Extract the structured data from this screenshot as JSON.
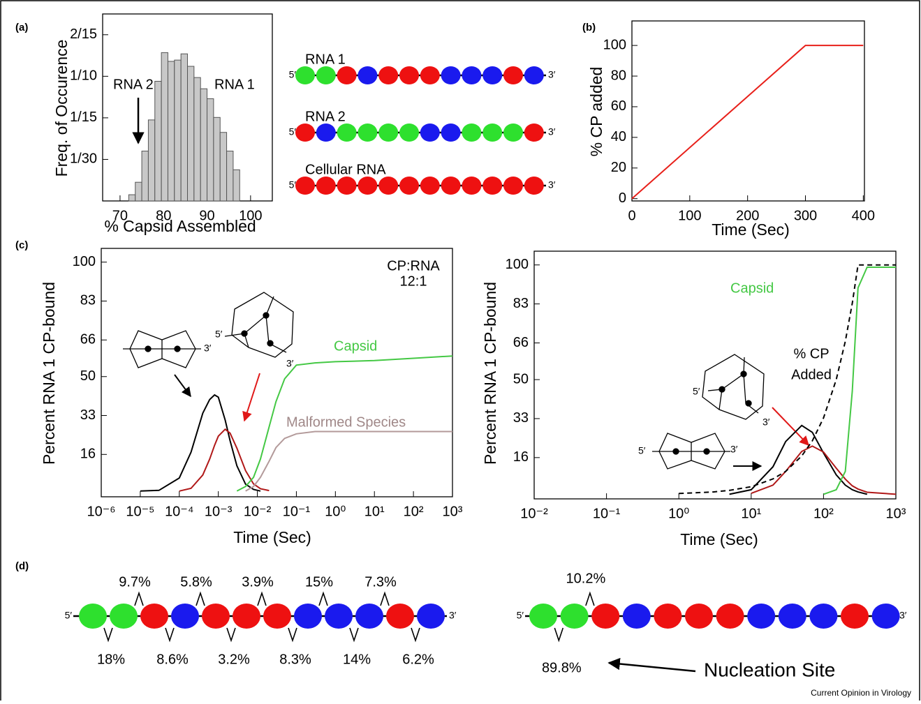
{
  "panel_labels": [
    "(a)",
    "(b)",
    "(c)",
    "(d)"
  ],
  "prime5": "5′",
  "prime3": "3′",
  "chart_data": [
    {
      "type": "histogram",
      "xlabel": "% Capsid Assembled",
      "ylabel": "Freq. of Occurence",
      "bins": [
        72,
        73.5,
        75,
        76.5,
        78,
        79.5,
        81,
        82.5,
        84,
        85.5,
        87,
        88.5,
        90,
        91.5,
        93,
        94.5,
        96,
        97.5
      ],
      "values": [
        0.005,
        0.015,
        0.04,
        0.065,
        0.096,
        0.119,
        0.112,
        0.113,
        0.118,
        0.108,
        0.099,
        0.09,
        0.082,
        0.067,
        0.055,
        0.04,
        0.025
      ],
      "color": "#c8c8c8",
      "edge_color": "#555555",
      "xlim": [
        66,
        105
      ],
      "xticks": [
        70,
        80,
        90,
        100
      ],
      "ylim": [
        0,
        0.15
      ],
      "yticks": [
        {
          "value": 0.03333,
          "label": "1/30"
        },
        {
          "value": 0.06667,
          "label": "1/15"
        },
        {
          "value": 0.1,
          "label": "1/10"
        },
        {
          "value": 0.13333,
          "label": "2/15"
        }
      ],
      "annotations": [
        "RNA 2",
        "RNA 1"
      ]
    },
    {
      "type": "line",
      "xlabel": "Time (Sec)",
      "ylabel": "% CP added",
      "x": [
        0,
        300,
        400
      ],
      "series": [
        {
          "color": "#e8201a",
          "values": [
            0,
            100,
            100
          ]
        }
      ],
      "xlim": [
        0,
        402
      ],
      "xticks": [
        0,
        100,
        200,
        300,
        400
      ],
      "ylim": [
        -1.5,
        116
      ],
      "yticks": [
        0,
        20,
        40,
        60,
        80,
        100
      ]
    },
    {
      "type": "line",
      "log_x": true,
      "xlabel": "Time (Sec)",
      "ylabel": "Percent RNA 1 CP-bound",
      "x": [
        1e-05,
        3e-05,
        0.0001,
        0.0002,
        0.0004,
        0.0006,
        0.0008,
        0.001,
        0.0015,
        0.002,
        0.003,
        0.005,
        0.008,
        0.012,
        0.02,
        0.03,
        0.05,
        0.1,
        0.3,
        1,
        10,
        100,
        1000
      ],
      "series": [
        {
          "color": "#000000",
          "values": [
            0,
            0.3,
            5.7,
            17,
            34,
            40,
            42,
            41,
            31,
            22,
            11,
            3,
            0.7,
            0,
            null,
            null,
            null,
            null,
            null,
            null,
            null,
            null,
            null
          ]
        },
        {
          "color": "#b01818",
          "values": [
            null,
            null,
            0,
            1.2,
            7,
            14,
            20,
            24,
            27,
            25.3,
            18.7,
            8.9,
            3.1,
            1,
            0.2,
            null,
            null,
            null,
            null,
            null,
            null,
            null,
            null
          ]
        },
        {
          "name": "Capsid",
          "color": "#44c844",
          "values": [
            null,
            null,
            null,
            null,
            null,
            null,
            null,
            null,
            null,
            null,
            0,
            2,
            6,
            14,
            28,
            39,
            49,
            55,
            56,
            56.5,
            57,
            58,
            59
          ]
        },
        {
          "name": "Malformed Species",
          "color": "#b39a9a",
          "values": [
            null,
            null,
            null,
            null,
            null,
            null,
            null,
            null,
            null,
            null,
            null,
            0,
            2,
            6,
            13,
            19,
            23,
            25,
            26,
            26,
            26,
            26,
            26
          ]
        }
      ],
      "xlim": [
        1e-06,
        1000
      ],
      "xticks": [
        {
          "value": 1e-06,
          "label": "10⁻⁶"
        },
        {
          "value": 1e-05,
          "label": "10⁻⁵"
        },
        {
          "value": 0.0001,
          "label": "10⁻⁴"
        },
        {
          "value": 0.001,
          "label": "10⁻³"
        },
        {
          "value": 0.01,
          "label": "10⁻²"
        },
        {
          "value": 0.1,
          "label": "10⁻¹"
        },
        {
          "value": 1,
          "label": "10⁰"
        },
        {
          "value": 10,
          "label": "10¹"
        },
        {
          "value": 100,
          "label": "10²"
        },
        {
          "value": 1000,
          "label": "10³"
        }
      ],
      "ylim": [
        -2.5,
        106
      ],
      "yticks": [
        16,
        33,
        50,
        66,
        83,
        100
      ],
      "annotations": [
        "CP:RNA",
        "12:1"
      ]
    },
    {
      "type": "line",
      "log_x": true,
      "xlabel": "Time (Sec)",
      "ylabel": "Percent RNA 1 CP-bound",
      "x": [
        1,
        3,
        5,
        10,
        20,
        30,
        50,
        70,
        100,
        150,
        200,
        250,
        300,
        400,
        1000
      ],
      "series": [
        {
          "color": "#000000",
          "values": [
            null,
            null,
            0,
            2,
            12,
            23,
            30,
            27,
            18,
            8.5,
            4,
            2,
            1,
            0,
            null
          ]
        },
        {
          "color": "#b01818",
          "values": [
            null,
            null,
            null,
            0.4,
            4,
            10,
            18.7,
            21,
            18.4,
            11.4,
            6.6,
            3.7,
            2.3,
            0.9,
            0
          ]
        },
        {
          "name": "Capsid",
          "color": "#44c844",
          "values": [
            null,
            null,
            null,
            null,
            null,
            null,
            null,
            null,
            0,
            2,
            10,
            45,
            90,
            99,
            99
          ]
        },
        {
          "color": "#000000",
          "dash": true,
          "values": [
            0.33,
            1,
            1.7,
            3.3,
            6.7,
            10,
            16.7,
            23.3,
            33.3,
            50,
            66.7,
            83.3,
            100,
            100,
            100
          ]
        }
      ],
      "xlim": [
        0.01,
        1000
      ],
      "xticks": [
        {
          "value": 0.01,
          "label": "10⁻²"
        },
        {
          "value": 0.1,
          "label": "10⁻¹"
        },
        {
          "value": 1,
          "label": "10⁰"
        },
        {
          "value": 10,
          "label": "10¹"
        },
        {
          "value": 100,
          "label": "10²"
        },
        {
          "value": 1000,
          "label": "10³"
        }
      ],
      "ylim": [
        -2,
        106
      ],
      "yticks": [
        16,
        33,
        50,
        66,
        83,
        100
      ],
      "annotations": [
        "% CP",
        "Added"
      ]
    }
  ],
  "rna_strands": [
    {
      "name": "RNA 1",
      "beads": [
        "#2ee02e",
        "#2ee02e",
        "#ee1111",
        "#1a1aee",
        "#ee1111",
        "#ee1111",
        "#ee1111",
        "#1a1aee",
        "#1a1aee",
        "#1a1aee",
        "#ee1111",
        "#1a1aee"
      ]
    },
    {
      "name": "RNA 2",
      "beads": [
        "#ee1111",
        "#1a1aee",
        "#2ee02e",
        "#2ee02e",
        "#2ee02e",
        "#2ee02e",
        "#1a1aee",
        "#1a1aee",
        "#2ee02e",
        "#2ee02e",
        "#2ee02e",
        "#ee1111"
      ]
    },
    {
      "name": "Cellular RNA",
      "beads": [
        "#ee1111",
        "#ee1111",
        "#ee1111",
        "#ee1111",
        "#ee1111",
        "#ee1111",
        "#ee1111",
        "#ee1111",
        "#ee1111",
        "#ee1111",
        "#ee1111",
        "#ee1111"
      ]
    }
  ],
  "strand_maps": [
    {
      "beads": [
        "#2ee02e",
        "#2ee02e",
        "#ee1111",
        "#1a1aee",
        "#ee1111",
        "#ee1111",
        "#ee1111",
        "#1a1aee",
        "#1a1aee",
        "#1a1aee",
        "#ee1111",
        "#1a1aee"
      ],
      "above": [
        null,
        "9.7%",
        null,
        "5.8%",
        null,
        "3.9%",
        null,
        "15%",
        null,
        "7.3%",
        null
      ],
      "below": [
        "18%",
        null,
        "8.6%",
        null,
        "3.2%",
        null,
        "8.3%",
        null,
        "14%",
        null,
        "6.2%"
      ]
    },
    {
      "beads": [
        "#2ee02e",
        "#2ee02e",
        "#ee1111",
        "#1a1aee",
        "#ee1111",
        "#ee1111",
        "#ee1111",
        "#1a1aee",
        "#1a1aee",
        "#1a1aee",
        "#ee1111",
        "#1a1aee"
      ],
      "above": [
        null,
        "10.2%",
        null,
        null,
        null,
        null,
        null,
        null,
        null,
        null,
        null
      ],
      "below": [
        "89.8%",
        null,
        null,
        null,
        null,
        null,
        null,
        null,
        null,
        null,
        null
      ]
    }
  ],
  "nucleation_label": "Nucleation Site",
  "credit": "Current Opinion in Virology"
}
